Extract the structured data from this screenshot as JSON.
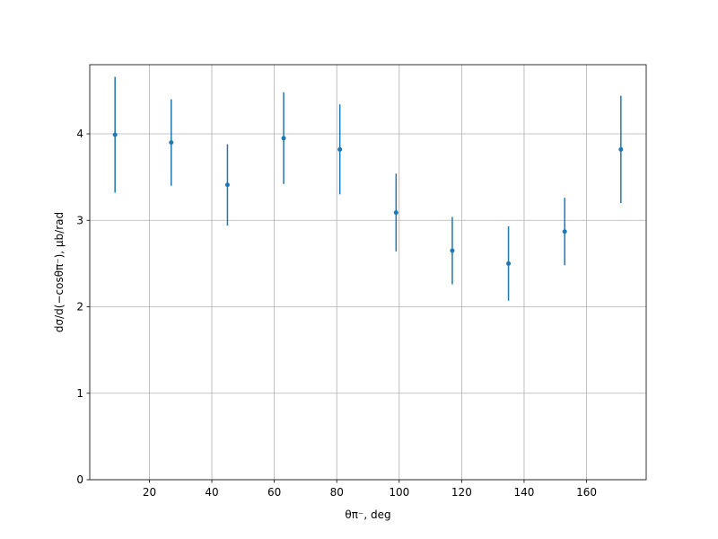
{
  "chart_data": {
    "type": "errorbar",
    "xlabel": "θπ⁻, deg",
    "ylabel": "dσ/d(−cosθπ⁻), μb/rad",
    "x": [
      9,
      27,
      45,
      63,
      81,
      99,
      117,
      135,
      153,
      171
    ],
    "series": [
      {
        "color": "#1f77b4",
        "values": [
          3.99,
          3.9,
          3.41,
          3.95,
          3.82,
          3.09,
          2.65,
          2.5,
          2.87,
          3.82
        ],
        "errors": [
          0.67,
          0.5,
          0.47,
          0.53,
          0.52,
          0.45,
          0.39,
          0.43,
          0.39,
          0.62
        ]
      }
    ],
    "xlim": [
      0.9,
      179.1
    ],
    "xticks": [
      20,
      40,
      60,
      80,
      100,
      120,
      140,
      160
    ],
    "ylim": [
      0,
      4.8
    ],
    "yticks": [
      0,
      1,
      2,
      3,
      4
    ],
    "grid": true
  }
}
